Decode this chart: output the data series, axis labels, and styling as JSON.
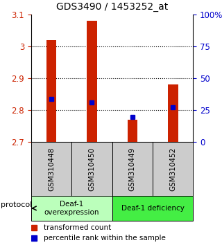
{
  "title": "GDS3490 / 1453252_at",
  "samples": [
    "GSM310448",
    "GSM310450",
    "GSM310449",
    "GSM310452"
  ],
  "bar_values": [
    3.02,
    3.08,
    2.77,
    2.88
  ],
  "percentile_values": [
    2.835,
    2.825,
    2.78,
    2.81
  ],
  "ylim": [
    2.7,
    3.1
  ],
  "yticks_left": [
    2.7,
    2.8,
    2.9,
    3.0,
    3.1
  ],
  "yticks_right": [
    0,
    25,
    50,
    75,
    100
  ],
  "ytick_labels_left": [
    "2.7",
    "2.8",
    "2.9",
    "3",
    "3.1"
  ],
  "ytick_labels_right": [
    "0",
    "25",
    "50",
    "75",
    "100%"
  ],
  "grid_values": [
    2.8,
    2.9,
    3.0
  ],
  "bar_color": "#cc2200",
  "percentile_color": "#0000cc",
  "groups": [
    {
      "label": "Deaf-1\noverexpression",
      "samples": [
        0,
        1
      ],
      "color": "#bbffbb"
    },
    {
      "label": "Deaf-1 deficiency",
      "samples": [
        2,
        3
      ],
      "color": "#44ee44"
    }
  ],
  "group_box_color": "#cccccc",
  "protocol_label": "protocol",
  "legend_red_label": "transformed count",
  "legend_blue_label": "percentile rank within the sample",
  "bar_width": 0.25
}
